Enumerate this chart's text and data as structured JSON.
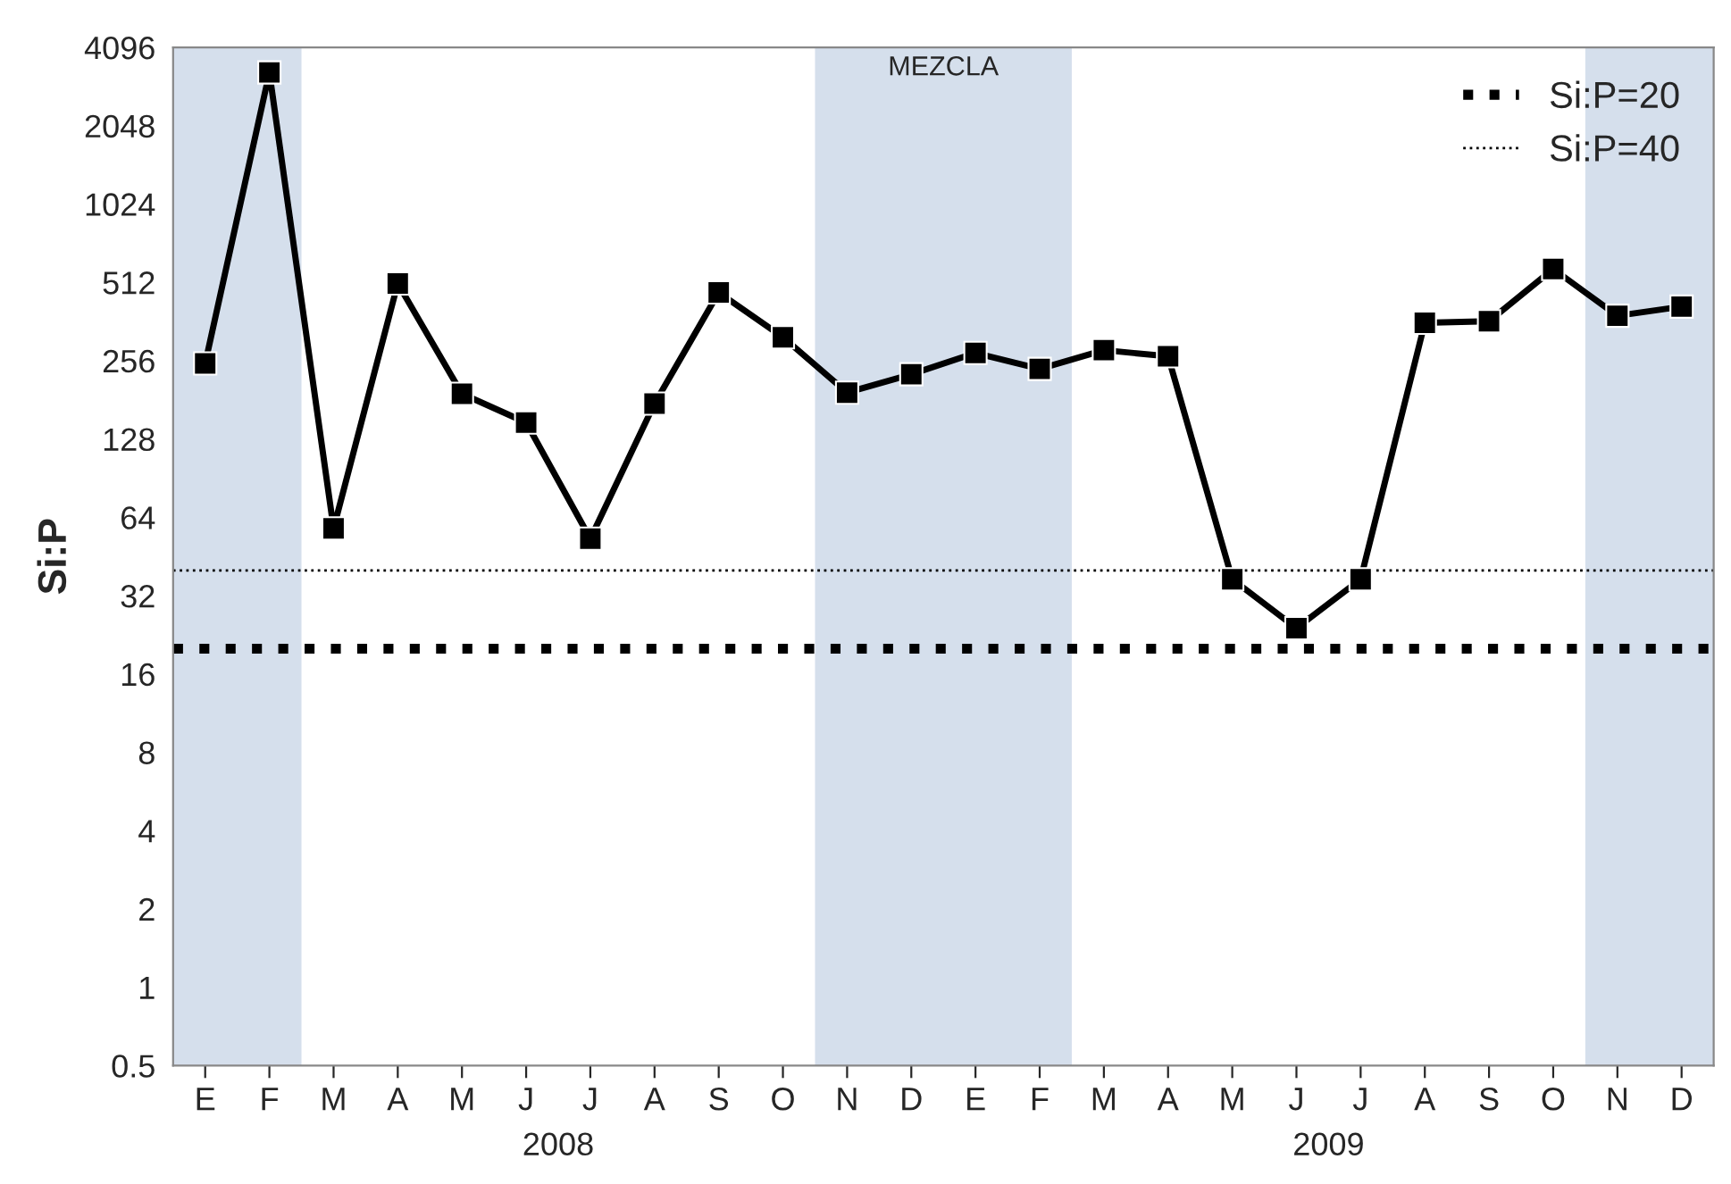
{
  "chart_data": {
    "type": "line",
    "ylabel": "Si:P",
    "categories": [
      "E",
      "F",
      "M",
      "A",
      "M",
      "J",
      "J",
      "A",
      "S",
      "O",
      "N",
      "D",
      "E",
      "F",
      "M",
      "A",
      "M",
      "J",
      "J",
      "A",
      "S",
      "O",
      "N",
      "D"
    ],
    "series": [
      {
        "color": "#000000",
        "values": [
          250,
          3280,
          58,
          507,
          191,
          148,
          53,
          175,
          468,
          315,
          193,
          227,
          274,
          238,
          281,
          266,
          37,
          24,
          37,
          358,
          363,
          576,
          381,
          413
        ]
      }
    ],
    "log": true,
    "ylim": [
      0.5,
      4096
    ],
    "yticks": [
      0.5,
      1,
      2,
      4,
      8,
      16,
      32,
      64,
      128,
      256,
      512,
      1024,
      2048,
      4096
    ],
    "marker": "square",
    "line_style": "solid",
    "grid": false,
    "legend": "top right",
    "ref_lines": [
      {
        "axis": "y",
        "value": 20,
        "label": "Si:P=20",
        "color": "#000000",
        "line_style": "dotted"
      },
      {
        "axis": "y",
        "value": 40,
        "label": "Si:P=40",
        "color": "#000000",
        "line_style": "dotted"
      }
    ],
    "bands": [
      {
        "axis": "x",
        "from": "E",
        "to": "F",
        "color": "#d5dfec"
      }
    ],
    "annotations": [
      "2008",
      "2009",
      "MEZCLA"
    ]
  }
}
